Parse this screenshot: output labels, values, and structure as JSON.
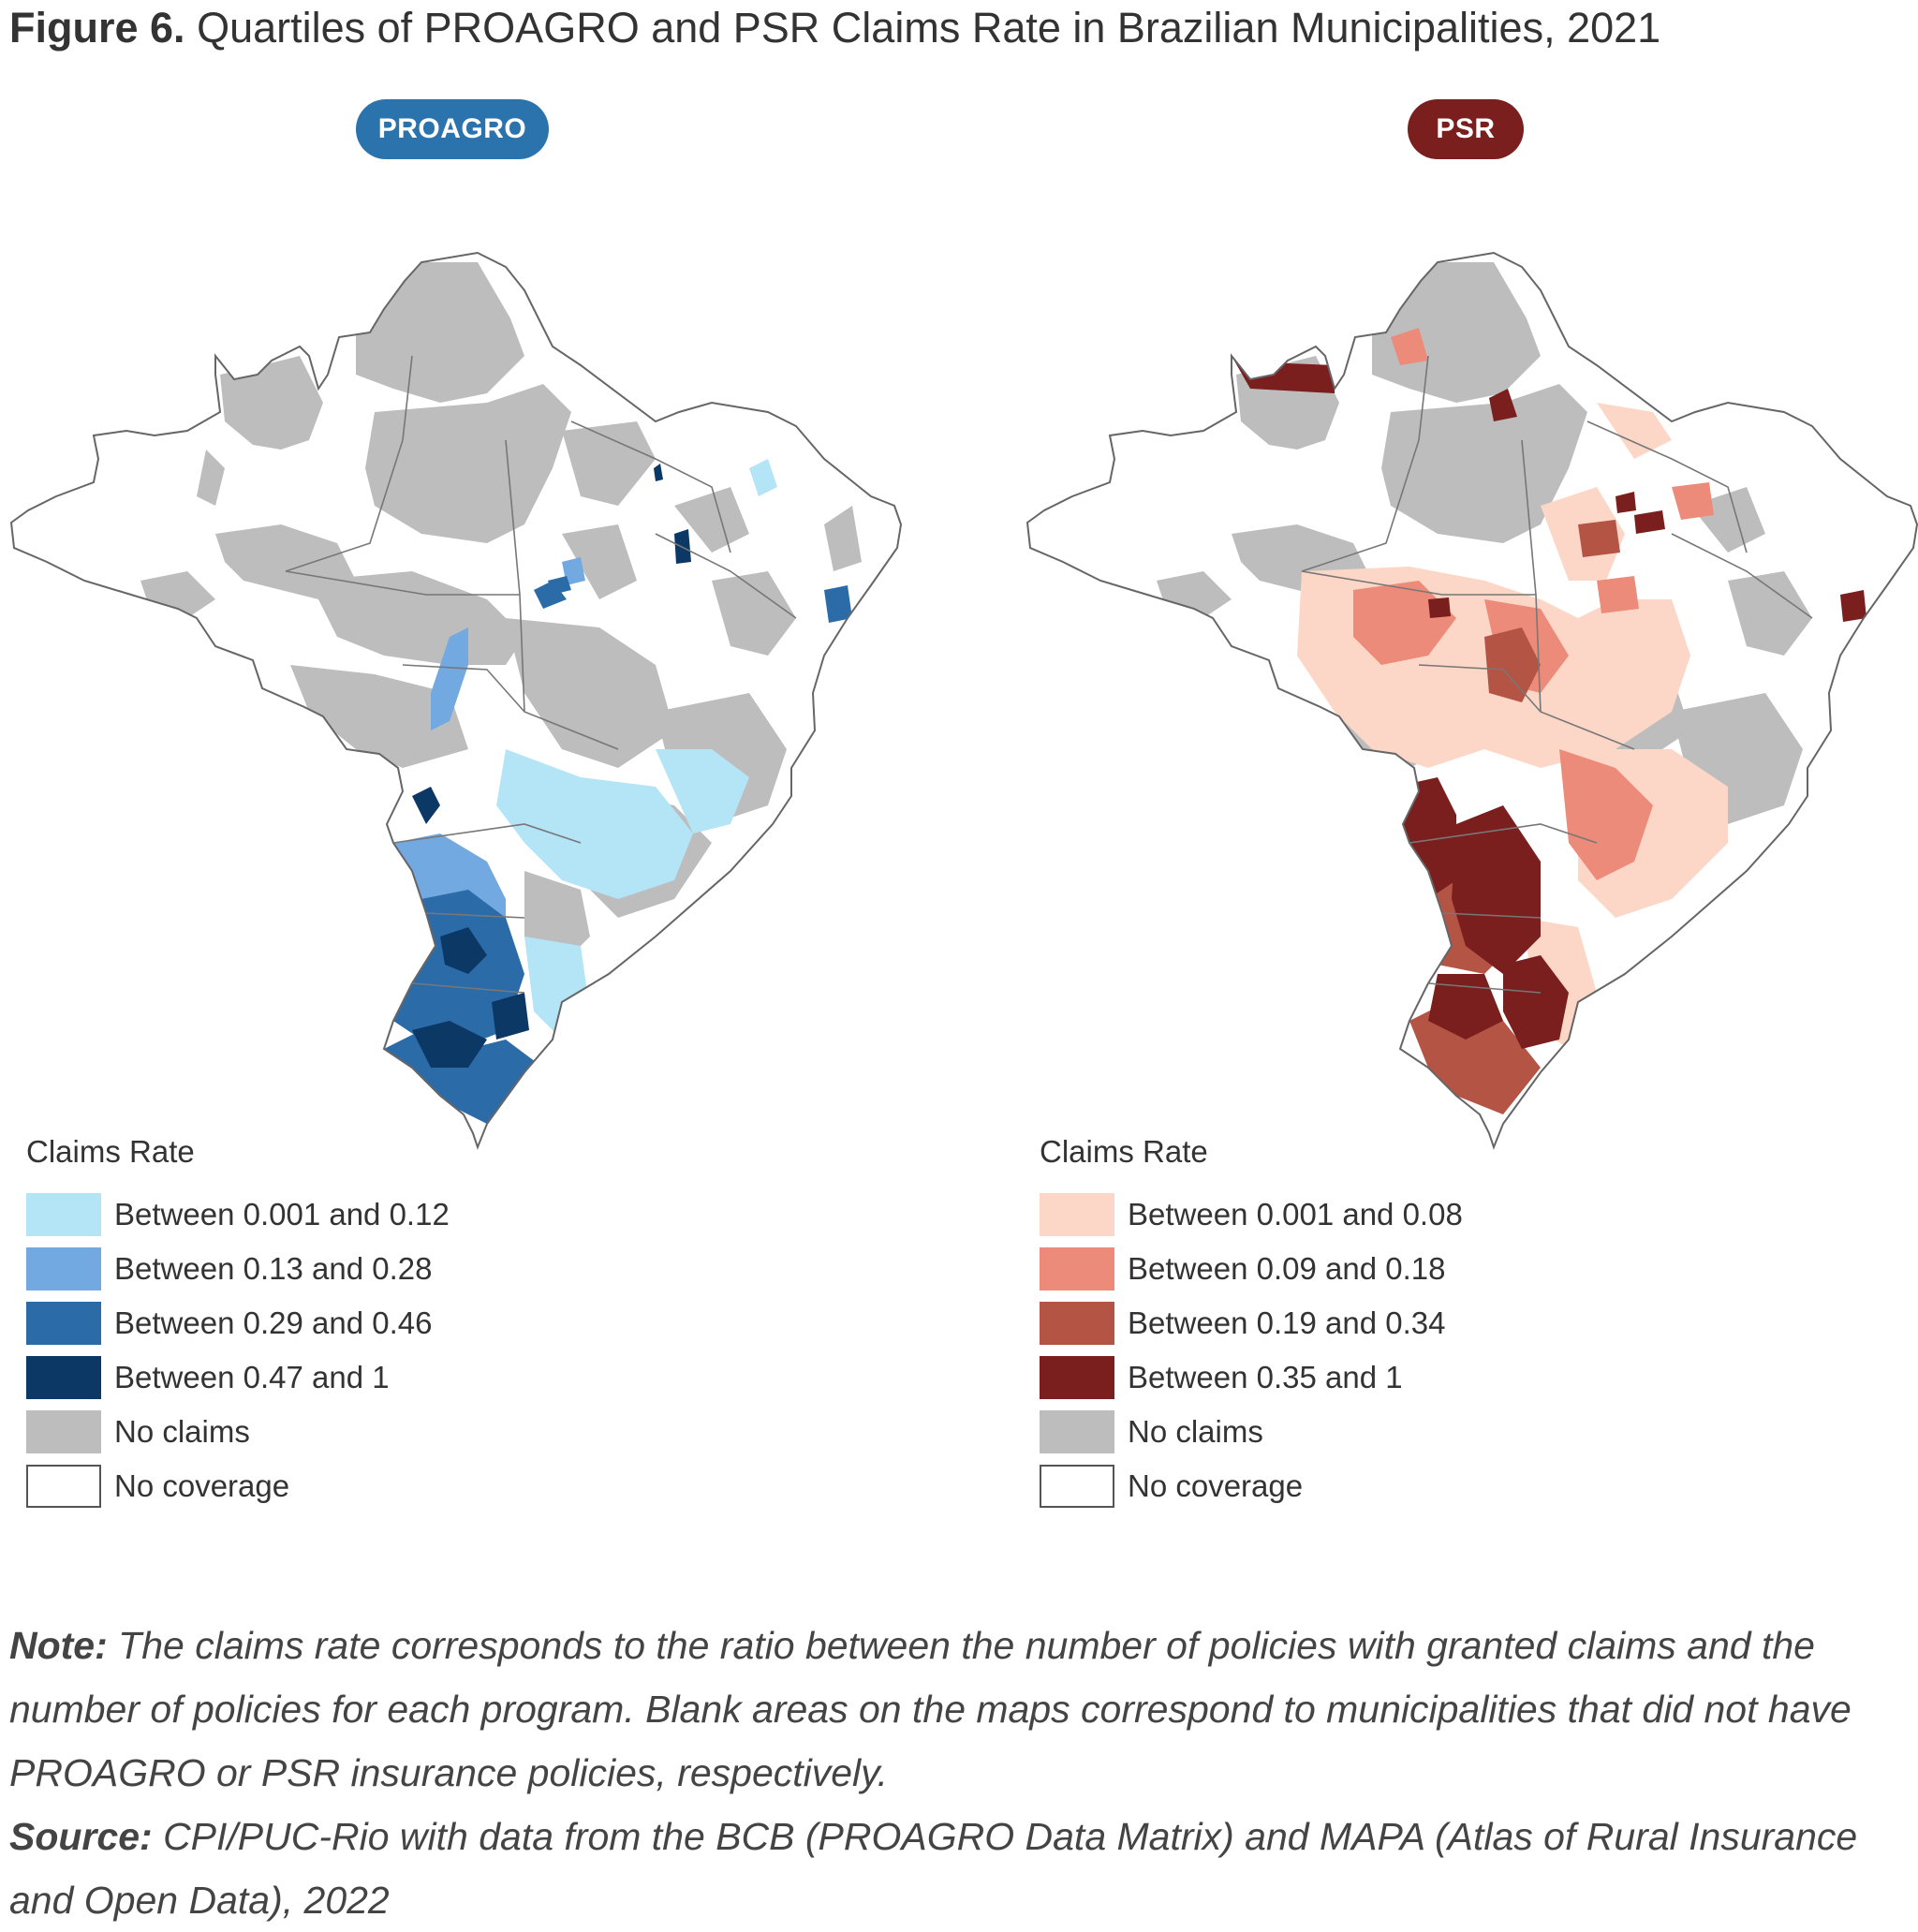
{
  "figure": {
    "label": "Figure 6.",
    "title": "Quartiles of PROAGRO and PSR Claims Rate in Brazilian Municipalities, 2021"
  },
  "maps": [
    {
      "pill": "PROAGRO",
      "pill_color": "#2b73ad",
      "legend": {
        "title": "Claims Rate",
        "items": [
          {
            "label": "Between 0.001 and 0.12",
            "color": "#b3e5f7"
          },
          {
            "label": "Between 0.13 and 0.28",
            "color": "#72a9e0"
          },
          {
            "label": "Between 0.29 and 0.46",
            "color": "#2b6ca8"
          },
          {
            "label": "Between 0.47 and 1",
            "color": "#0c3866"
          },
          {
            "label": "No claims",
            "color": "#bdbdbd"
          },
          {
            "label": "No coverage",
            "color": "#ffffff"
          }
        ]
      }
    },
    {
      "pill": "PSR",
      "pill_color": "#7a1e1e",
      "legend": {
        "title": "Claims Rate",
        "items": [
          {
            "label": "Between 0.001 and 0.08",
            "color": "#fcd6c6"
          },
          {
            "label": "Between 0.09 and 0.18",
            "color": "#ec8b7a"
          },
          {
            "label": "Between 0.19 and 0.34",
            "color": "#b45445"
          },
          {
            "label": "Between 0.35 and 1",
            "color": "#7a1e1e"
          },
          {
            "label": "No claims",
            "color": "#bdbdbd"
          },
          {
            "label": "No coverage",
            "color": "#ffffff"
          }
        ]
      }
    }
  ],
  "notes": {
    "note_label": "Note:",
    "note_text": "The claims rate corresponds to the ratio between the number of policies with granted claims and the number of policies for each program. Blank areas on the maps correspond to municipalities that did not have PROAGRO or PSR insurance policies, respectively.",
    "source_label": "Source:",
    "source_text": "CPI/PUC-Rio with data from the BCB (PROAGRO Data Matrix) and MAPA (Atlas of Rural Insurance and Open Data), 2022"
  }
}
